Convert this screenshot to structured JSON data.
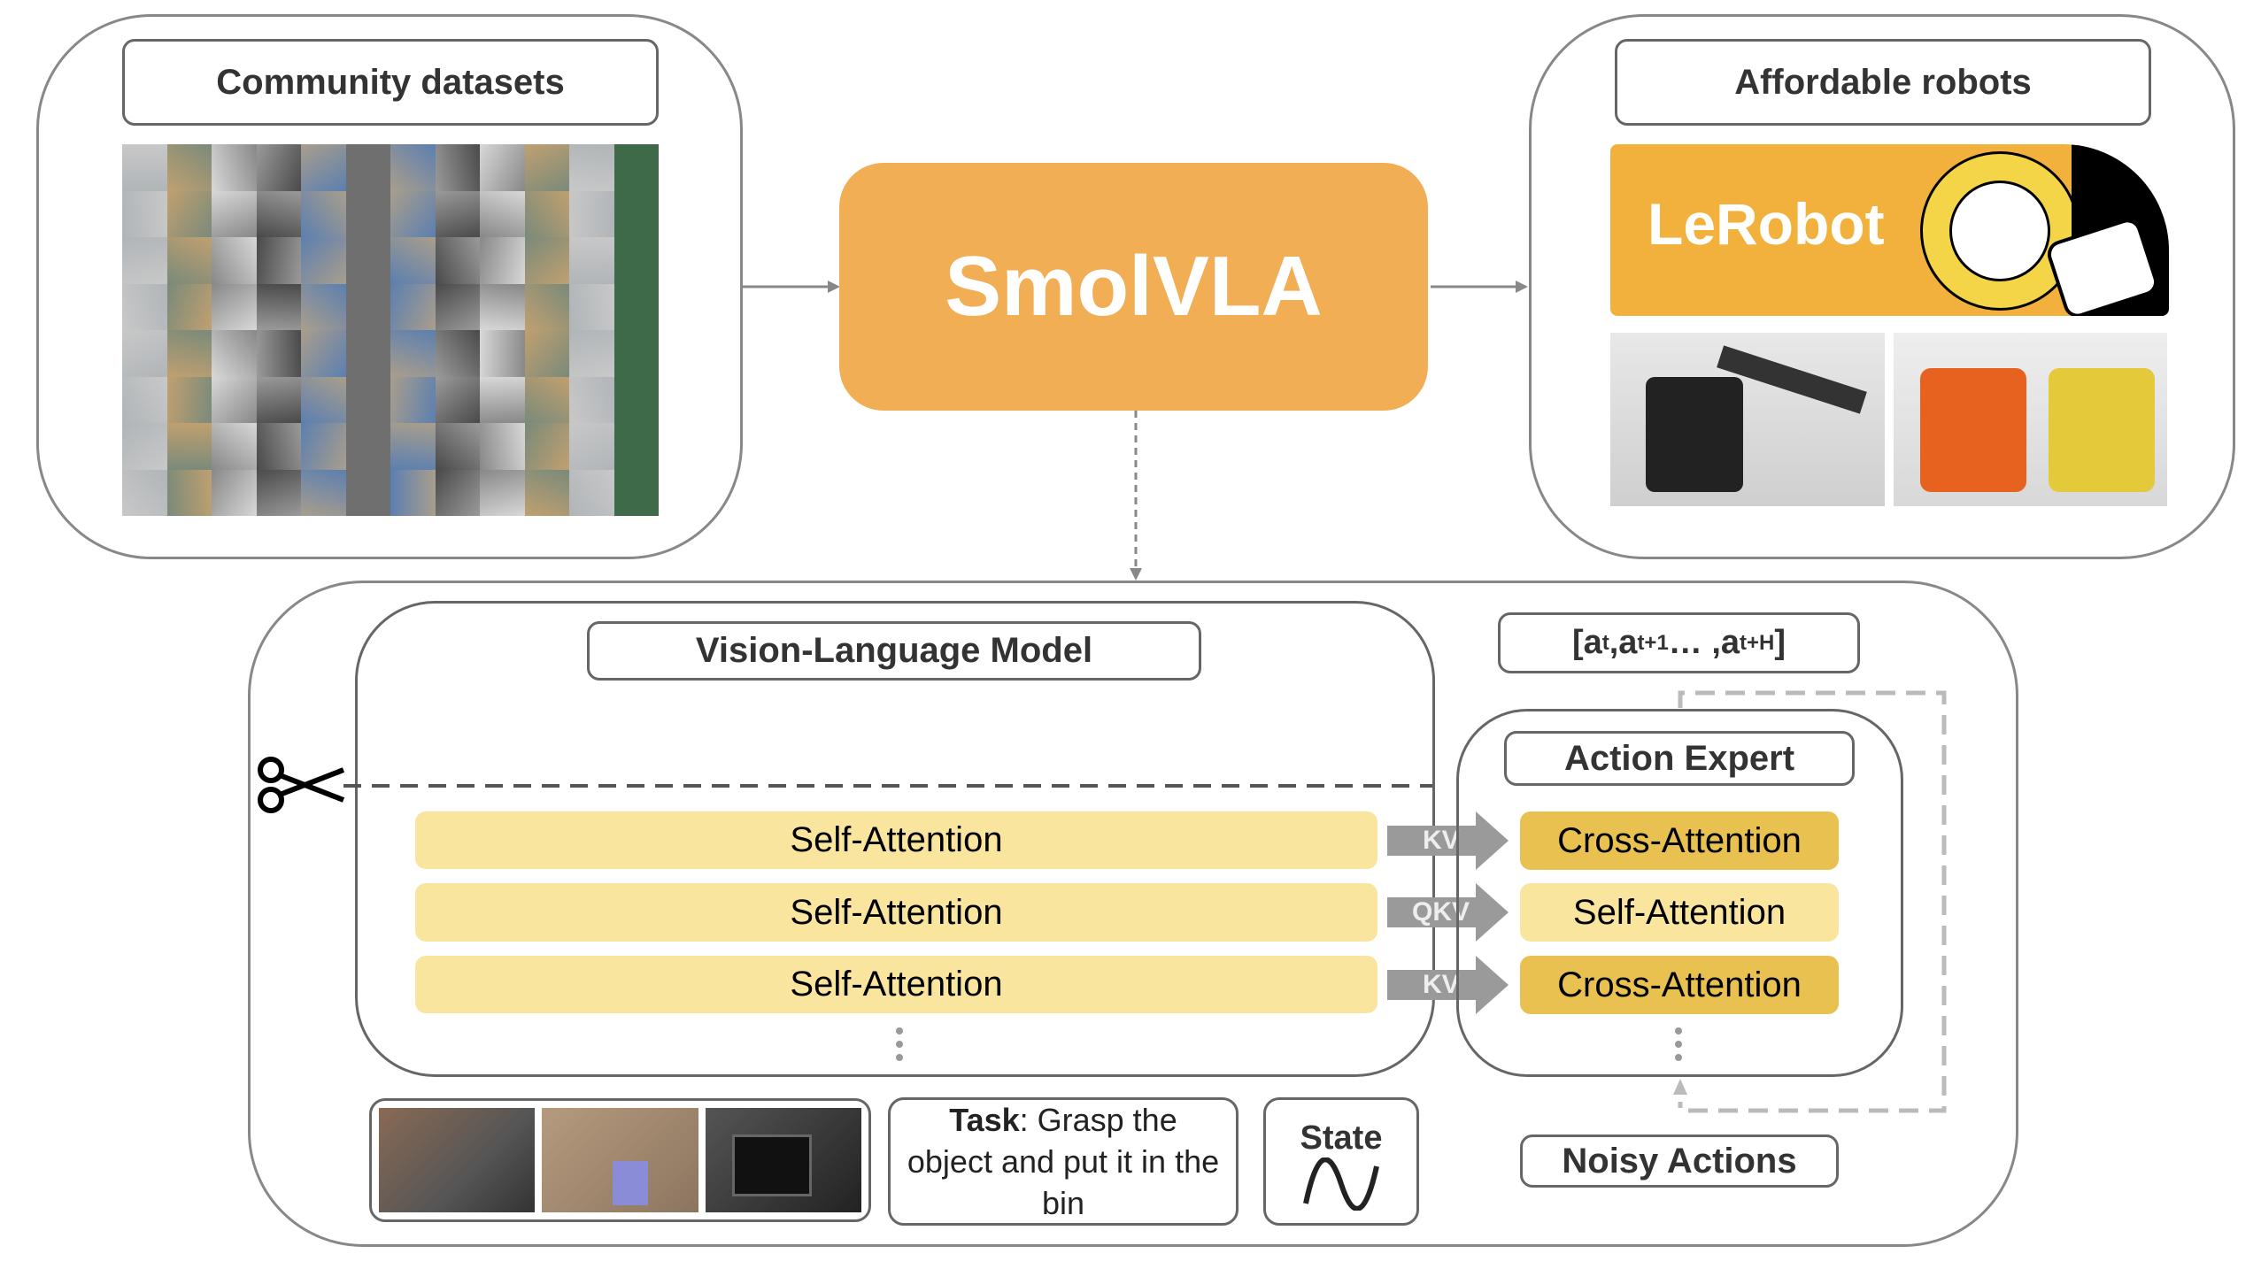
{
  "top_left": {
    "title": "Community datasets"
  },
  "center": {
    "title": "SmolVLA",
    "color": "#F2AE55"
  },
  "top_right": {
    "title": "Affordable robots",
    "logo_text": "LeRobot",
    "logo_color": "#F2B13C"
  },
  "vlm": {
    "title": "Vision-Language Model",
    "layers": [
      "Self-Attention",
      "Self-Attention",
      "Self-Attention"
    ]
  },
  "connectors": [
    "KV",
    "QKV",
    "KV"
  ],
  "action_expert": {
    "title": "Action Expert",
    "layers": [
      "Cross-Attention",
      "Self-Attention",
      "Cross-Attention"
    ]
  },
  "actions_output": {
    "open": "[a",
    "t": "t",
    "sep1": " ,a",
    "t1": "t+1",
    "mid": " … ,a",
    "tH": "t+H",
    "close": "]"
  },
  "inputs": {
    "task_label": "Task",
    "task_text": ": Grasp the object and put it in the bin",
    "state_label": "State"
  },
  "noisy_actions": "Noisy Actions",
  "icons": [
    "scissors-icon",
    "sine-wave-icon"
  ]
}
